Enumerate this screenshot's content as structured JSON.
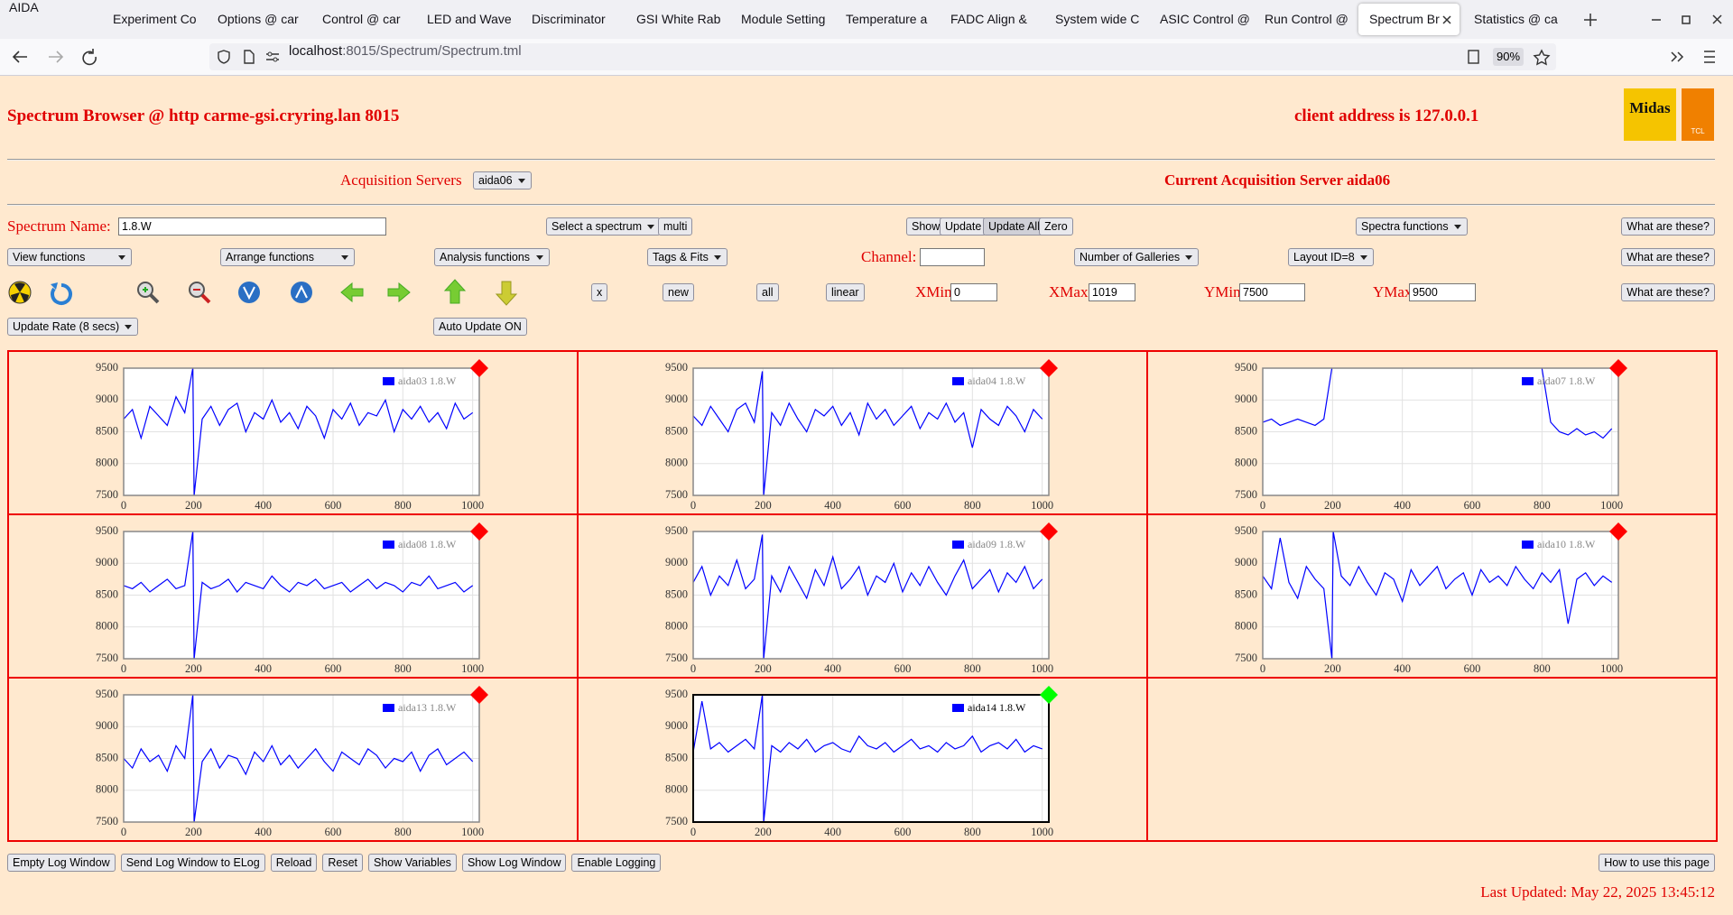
{
  "browser": {
    "app": "AIDA",
    "tabs": [
      "Experiment Co",
      "Options @ car",
      "Control @ car",
      "LED and Wave",
      "Discriminator",
      "GSI White Rab",
      "Module Setting",
      "Temperature a",
      "FADC Align &",
      "System wide C",
      "ASIC Control @",
      "Run Control @",
      "Spectrum Br",
      "Statistics @ ca"
    ],
    "active_tab": 12,
    "url_host": "localhost",
    "url_path": ":8015/Spectrum/Spectrum.tml",
    "zoom": "90%"
  },
  "header": {
    "title": "Spectrum Browser @ http carme-gsi.cryring.lan 8015",
    "client": "client address is 127.0.0.1",
    "logo_text": "Midas",
    "logo2_text": "TCL"
  },
  "acquisition": {
    "label": "Acquisition Servers",
    "selected": "aida06",
    "current": "Current Acquisition Server aida06"
  },
  "controls": {
    "spectrum_name_label": "Spectrum Name:",
    "spectrum_name": "1.8.W",
    "select_spectrum": "Select a spectrum",
    "multi": "multi",
    "show": "Show",
    "update": "Update",
    "update_all": "Update All",
    "zero": "Zero",
    "spectra_functions": "Spectra functions",
    "help1": "What are these?",
    "view_functions": "View functions",
    "arrange_functions": "Arrange functions",
    "analysis_functions": "Analysis functions",
    "tags_fits": "Tags & Fits",
    "channel_label": "Channel:",
    "galleries": "Number of Galleries",
    "layout": "Layout ID=8",
    "help2": "What are these?",
    "x_button": "x",
    "new": "new",
    "all": "all",
    "linear": "linear",
    "xmin_label": "XMin",
    "xmin": "0",
    "xmax_label": "XMax",
    "xmax": "1019",
    "ymin_label": "YMin",
    "ymin": "7500",
    "ymax_label": "YMax",
    "ymax": "9500",
    "help3": "What are these?",
    "update_rate": "Update Rate (8 secs)",
    "auto_update": "Auto Update ON"
  },
  "footer": {
    "buttons": [
      "Empty Log Window",
      "Send Log Window to ELog",
      "Reload",
      "Reset",
      "Show Variables",
      "Show Log Window",
      "Enable Logging"
    ],
    "help": "How to use this page",
    "last_updated": "Last Updated: May 22, 2025 13:45:12"
  },
  "chart_data": [
    {
      "type": "line",
      "xlim": [
        0,
        1019
      ],
      "ylim": [
        7500,
        9500
      ],
      "xticks": [
        0,
        200,
        400,
        600,
        800,
        1000
      ],
      "yticks": [
        7500,
        8000,
        8500,
        9000,
        9500
      ],
      "grid": true,
      "legend": "upper right",
      "marker_color": "#ff0000",
      "frame_color": "#888888",
      "series": [
        {
          "name": "aida03 1.8.W",
          "color": "#0000ff",
          "x": [
            0,
            25,
            50,
            75,
            100,
            125,
            150,
            175,
            198,
            202,
            225,
            250,
            275,
            300,
            325,
            350,
            375,
            400,
            425,
            450,
            475,
            500,
            525,
            550,
            575,
            600,
            625,
            650,
            675,
            700,
            725,
            750,
            775,
            800,
            825,
            850,
            875,
            900,
            925,
            950,
            975,
            1000
          ],
          "values": [
            8700,
            8850,
            8400,
            8900,
            8750,
            8600,
            9050,
            8800,
            9500,
            7500,
            8700,
            8900,
            8600,
            8850,
            8950,
            8500,
            8800,
            8700,
            9000,
            8650,
            8800,
            8550,
            8900,
            8750,
            8400,
            8850,
            8700,
            8950,
            8600,
            8800,
            8750,
            9000,
            8500,
            8850,
            8700,
            8900,
            8650,
            8800,
            8550,
            8950,
            8700,
            8800
          ]
        }
      ]
    },
    {
      "type": "line",
      "xlim": [
        0,
        1019
      ],
      "ylim": [
        7500,
        9500
      ],
      "xticks": [
        0,
        200,
        400,
        600,
        800,
        1000
      ],
      "yticks": [
        7500,
        8000,
        8500,
        9000,
        9500
      ],
      "grid": true,
      "legend": "upper right",
      "marker_color": "#ff0000",
      "frame_color": "#888888",
      "series": [
        {
          "name": "aida04 1.8.W",
          "color": "#0000ff",
          "x": [
            0,
            25,
            50,
            75,
            100,
            125,
            150,
            175,
            198,
            202,
            225,
            250,
            275,
            300,
            325,
            350,
            375,
            400,
            425,
            450,
            475,
            500,
            525,
            550,
            575,
            600,
            625,
            650,
            675,
            700,
            725,
            750,
            775,
            800,
            825,
            850,
            875,
            900,
            925,
            950,
            975,
            1000
          ],
          "values": [
            8750,
            8600,
            8900,
            8700,
            8500,
            8850,
            8950,
            8650,
            9450,
            7500,
            8800,
            8600,
            8950,
            8700,
            8500,
            8850,
            8750,
            8900,
            8600,
            8800,
            8450,
            8950,
            8700,
            8850,
            8600,
            8750,
            8900,
            8550,
            8800,
            8700,
            8950,
            8650,
            8800,
            8250,
            8850,
            8700,
            8600,
            8900,
            8750,
            8500,
            8850,
            8700
          ]
        }
      ]
    },
    {
      "type": "line",
      "xlim": [
        0,
        1019
      ],
      "ylim": [
        7500,
        9500
      ],
      "xticks": [
        0,
        200,
        400,
        600,
        800,
        1000
      ],
      "yticks": [
        7500,
        8000,
        8500,
        9000,
        9500
      ],
      "grid": true,
      "legend": "upper right",
      "marker_color": "#ff0000",
      "frame_color": "#888888",
      "series": [
        {
          "name": "aida07 1.8.W",
          "color": "#0000ff",
          "x": [
            0,
            25,
            50,
            75,
            100,
            125,
            150,
            175,
            198,
            202,
            225,
            250,
            275,
            300,
            325,
            350,
            375,
            400,
            425,
            450,
            475,
            500,
            525,
            550,
            575,
            600,
            625,
            650,
            675,
            700,
            725,
            750,
            775,
            800,
            825,
            850,
            875,
            900,
            925,
            950,
            975,
            1000
          ],
          "values": [
            8650,
            8700,
            8600,
            8650,
            8700,
            8650,
            8600,
            8700,
            9500,
            null,
            null,
            null,
            null,
            null,
            null,
            null,
            null,
            null,
            null,
            null,
            null,
            null,
            null,
            null,
            null,
            null,
            null,
            null,
            null,
            null,
            null,
            null,
            null,
            9500,
            8650,
            8500,
            8450,
            8550,
            8450,
            8500,
            8400,
            8550
          ]
        }
      ]
    },
    {
      "type": "line",
      "xlim": [
        0,
        1019
      ],
      "ylim": [
        7500,
        9500
      ],
      "xticks": [
        0,
        200,
        400,
        600,
        800,
        1000
      ],
      "yticks": [
        7500,
        8000,
        8500,
        9000,
        9500
      ],
      "grid": true,
      "legend": "upper right",
      "marker_color": "#ff0000",
      "frame_color": "#888888",
      "series": [
        {
          "name": "aida08 1.8.W",
          "color": "#0000ff",
          "x": [
            0,
            25,
            50,
            75,
            100,
            125,
            150,
            175,
            198,
            202,
            225,
            250,
            275,
            300,
            325,
            350,
            375,
            400,
            425,
            450,
            475,
            500,
            525,
            550,
            575,
            600,
            625,
            650,
            675,
            700,
            725,
            750,
            775,
            800,
            825,
            850,
            875,
            900,
            925,
            950,
            975,
            1000
          ],
          "values": [
            8650,
            8600,
            8700,
            8550,
            8650,
            8750,
            8600,
            8650,
            9500,
            7500,
            8700,
            8600,
            8650,
            8750,
            8550,
            8700,
            8650,
            8600,
            8800,
            8650,
            8550,
            8700,
            8650,
            8750,
            8600,
            8650,
            8700,
            8550,
            8650,
            8750,
            8600,
            8700,
            8650,
            8550,
            8700,
            8650,
            8800,
            8600,
            8650,
            8700,
            8550,
            8650
          ]
        }
      ]
    },
    {
      "type": "line",
      "xlim": [
        0,
        1019
      ],
      "ylim": [
        7500,
        9500
      ],
      "xticks": [
        0,
        200,
        400,
        600,
        800,
        1000
      ],
      "yticks": [
        7500,
        8000,
        8500,
        9000,
        9500
      ],
      "grid": true,
      "legend": "upper right",
      "marker_color": "#ff0000",
      "frame_color": "#888888",
      "series": [
        {
          "name": "aida09 1.8.W",
          "color": "#0000ff",
          "x": [
            0,
            25,
            50,
            75,
            100,
            125,
            150,
            175,
            198,
            202,
            225,
            250,
            275,
            300,
            325,
            350,
            375,
            400,
            425,
            450,
            475,
            500,
            525,
            550,
            575,
            600,
            625,
            650,
            675,
            700,
            725,
            750,
            775,
            800,
            825,
            850,
            875,
            900,
            925,
            950,
            975,
            1000
          ],
          "values": [
            8700,
            8950,
            8500,
            8800,
            8650,
            9050,
            8600,
            8750,
            9450,
            7500,
            8800,
            8550,
            8950,
            8700,
            8450,
            8900,
            8650,
            9100,
            8600,
            8750,
            8950,
            8500,
            8800,
            8700,
            9000,
            8550,
            8850,
            8650,
            8950,
            8700,
            8500,
            8800,
            9050,
            8600,
            8750,
            8900,
            8550,
            8850,
            8700,
            8950,
            8600,
            8750
          ]
        }
      ]
    },
    {
      "type": "line",
      "xlim": [
        0,
        1019
      ],
      "ylim": [
        7500,
        9500
      ],
      "xticks": [
        0,
        200,
        400,
        600,
        800,
        1000
      ],
      "yticks": [
        7500,
        8000,
        8500,
        9000,
        9500
      ],
      "grid": true,
      "legend": "upper right",
      "marker_color": "#ff0000",
      "frame_color": "#888888",
      "series": [
        {
          "name": "aida10 1.8.W",
          "color": "#0000ff",
          "x": [
            0,
            25,
            50,
            75,
            100,
            125,
            150,
            175,
            198,
            202,
            225,
            250,
            275,
            300,
            325,
            350,
            375,
            400,
            425,
            450,
            475,
            500,
            525,
            550,
            575,
            600,
            625,
            650,
            675,
            700,
            725,
            750,
            775,
            800,
            825,
            850,
            875,
            900,
            925,
            950,
            975,
            1000
          ],
          "values": [
            8800,
            8600,
            9400,
            8700,
            8450,
            8950,
            8750,
            8600,
            7500,
            9500,
            8800,
            8650,
            8950,
            8700,
            8500,
            8850,
            8750,
            8400,
            8900,
            8650,
            8800,
            8950,
            8600,
            8750,
            8850,
            8500,
            8900,
            8700,
            8800,
            8650,
            8950,
            8750,
            8600,
            8850,
            8700,
            8900,
            8050,
            8750,
            8850,
            8650,
            8800,
            8700
          ]
        }
      ]
    },
    {
      "type": "line",
      "xlim": [
        0,
        1019
      ],
      "ylim": [
        7500,
        9500
      ],
      "xticks": [
        0,
        200,
        400,
        600,
        800,
        1000
      ],
      "yticks": [
        7500,
        8000,
        8500,
        9000,
        9500
      ],
      "grid": true,
      "legend": "upper right",
      "marker_color": "#ff0000",
      "frame_color": "#888888",
      "series": [
        {
          "name": "aida13 1.8.W",
          "color": "#0000ff",
          "x": [
            0,
            25,
            50,
            75,
            100,
            125,
            150,
            175,
            198,
            202,
            225,
            250,
            275,
            300,
            325,
            350,
            375,
            400,
            425,
            450,
            475,
            500,
            525,
            550,
            575,
            600,
            625,
            650,
            675,
            700,
            725,
            750,
            775,
            800,
            825,
            850,
            875,
            900,
            925,
            950,
            975,
            1000
          ],
          "values": [
            8500,
            8350,
            8650,
            8450,
            8550,
            8300,
            8700,
            8500,
            9500,
            7500,
            8450,
            8650,
            8350,
            8550,
            8500,
            8250,
            8600,
            8450,
            8700,
            8400,
            8550,
            8350,
            8500,
            8650,
            8450,
            8300,
            8600,
            8500,
            8400,
            8650,
            8550,
            8350,
            8500,
            8450,
            8600,
            8300,
            8550,
            8650,
            8400,
            8500,
            8600,
            8450
          ]
        }
      ]
    },
    {
      "type": "line",
      "xlim": [
        0,
        1019
      ],
      "ylim": [
        7500,
        9500
      ],
      "xticks": [
        0,
        200,
        400,
        600,
        800,
        1000
      ],
      "yticks": [
        7500,
        8000,
        8500,
        9000,
        9500
      ],
      "grid": true,
      "legend": "upper right",
      "marker_color": "#00ff00",
      "frame_color": "#000000",
      "series": [
        {
          "name": "aida14 1.8.W",
          "color": "#0000ff",
          "x": [
            0,
            25,
            50,
            75,
            100,
            125,
            150,
            175,
            198,
            202,
            225,
            250,
            275,
            300,
            325,
            350,
            375,
            400,
            425,
            450,
            475,
            500,
            525,
            550,
            575,
            600,
            625,
            650,
            675,
            700,
            725,
            750,
            775,
            800,
            825,
            850,
            875,
            900,
            925,
            950,
            975,
            1000
          ],
          "values": [
            8600,
            9400,
            8650,
            8750,
            8600,
            8700,
            8800,
            8650,
            9500,
            7500,
            8700,
            8600,
            8750,
            8650,
            8800,
            8600,
            8700,
            8750,
            8650,
            8600,
            8850,
            8700,
            8650,
            8750,
            8600,
            8700,
            8800,
            8650,
            8700,
            8600,
            8750,
            8650,
            8700,
            8850,
            8600,
            8700,
            8750,
            8650,
            8800,
            8600,
            8700,
            8650
          ]
        }
      ]
    }
  ]
}
